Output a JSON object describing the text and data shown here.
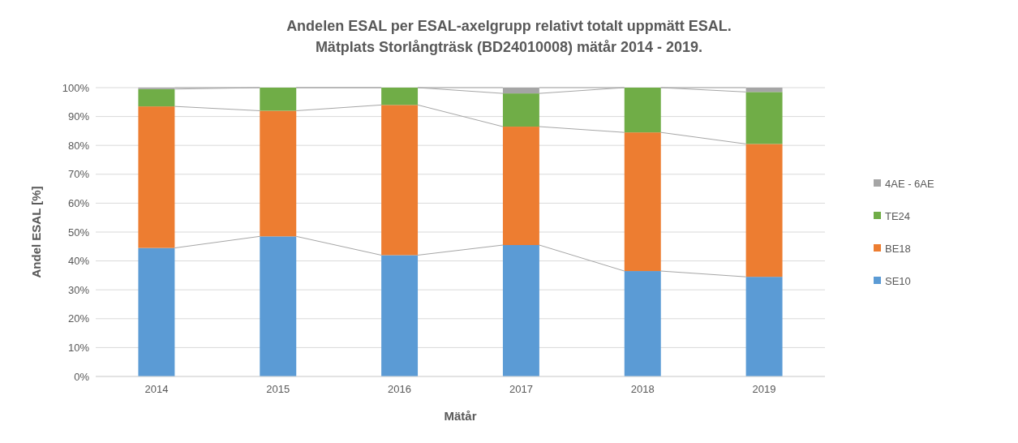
{
  "chart_data": {
    "type": "bar",
    "stacked": true,
    "title": "Andelen ESAL per ESAL-axelgrupp relativt totalt uppmätt ESAL.\nMätplats Storlångträsk (BD24010008) mätår 2014 - 2019.",
    "xlabel": "Mätår",
    "ylabel": "Andel ESAL [%]",
    "categories": [
      "2014",
      "2015",
      "2016",
      "2017",
      "2018",
      "2019"
    ],
    "series": [
      {
        "name": "SE10",
        "color": "#5b9bd5",
        "values": [
          44.5,
          48.5,
          42,
          45.5,
          36.5,
          34.5
        ]
      },
      {
        "name": "BE18",
        "color": "#ed7d31",
        "values": [
          49,
          43.5,
          52,
          41,
          48,
          46
        ]
      },
      {
        "name": "TE24",
        "color": "#70ad47",
        "values": [
          6,
          8,
          6,
          11.5,
          15.5,
          18
        ]
      },
      {
        "name": "4AE - 6AE",
        "color": "#a5a5a5",
        "values": [
          0.5,
          0,
          0,
          2,
          0,
          1.5
        ]
      }
    ],
    "ylim": [
      0,
      100
    ],
    "yticks": [
      {
        "value": 0,
        "label": "0%"
      },
      {
        "value": 10,
        "label": "10%"
      },
      {
        "value": 20,
        "label": "20%"
      },
      {
        "value": 30,
        "label": "30%"
      },
      {
        "value": 40,
        "label": "40%"
      },
      {
        "value": 50,
        "label": "50%"
      },
      {
        "value": 60,
        "label": "60%"
      },
      {
        "value": 70,
        "label": "70%"
      },
      {
        "value": 80,
        "label": "80%"
      },
      {
        "value": 90,
        "label": "90%"
      },
      {
        "value": 100,
        "label": "100%"
      }
    ],
    "grid": "y",
    "legend": "right"
  }
}
